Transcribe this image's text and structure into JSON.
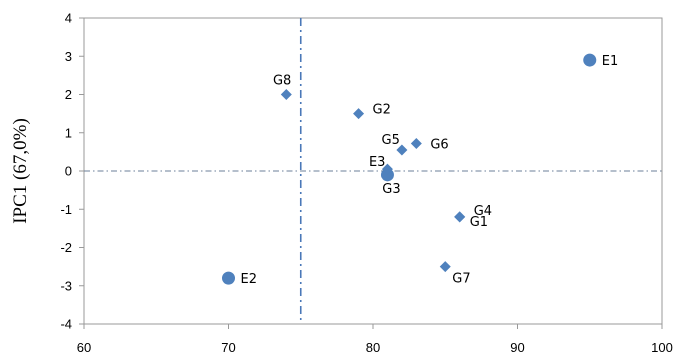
{
  "chart_data": {
    "type": "scatter",
    "ylabel": "IPC1 (67,0%)",
    "xlabel": "",
    "xlim": [
      60,
      100
    ],
    "ylim": [
      -4,
      4
    ],
    "xticks": [
      60,
      70,
      80,
      90,
      100
    ],
    "yticks": [
      -4,
      -3,
      -2,
      -1,
      0,
      1,
      2,
      3,
      4
    ],
    "grid": false,
    "reference_lines": {
      "x": 75,
      "y": 0
    },
    "series": [
      {
        "marker": "circle",
        "color": "#4f81bd",
        "points": [
          {
            "label": "E1",
            "x": 95,
            "y": 2.9
          },
          {
            "label": "E2",
            "x": 70,
            "y": -2.8
          },
          {
            "label": "E3",
            "x": 81,
            "y": -0.1
          }
        ]
      },
      {
        "marker": "diamond",
        "color": "#4f81bd",
        "points": [
          {
            "label": "G1",
            "x": 86,
            "y": -1.2
          },
          {
            "label": "G2",
            "x": 79,
            "y": 1.5
          },
          {
            "label": "G3",
            "x": 81,
            "y": 0.05
          },
          {
            "label": "G4",
            "x": 86,
            "y": -1.2
          },
          {
            "label": "G5",
            "x": 82,
            "y": 0.55
          },
          {
            "label": "G6",
            "x": 83,
            "y": 0.72
          },
          {
            "label": "G7",
            "x": 85,
            "y": -2.5
          },
          {
            "label": "G8",
            "x": 74,
            "y": 2.0
          }
        ]
      }
    ]
  }
}
